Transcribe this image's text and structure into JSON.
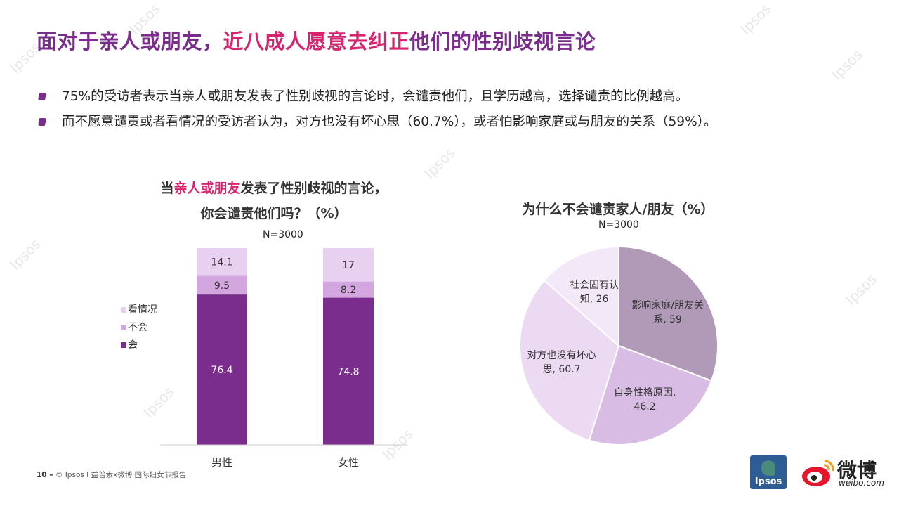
{
  "title": {
    "part1": "面对于亲人或朋友，",
    "part2": "近八成人愿意去纠正",
    "part3": "他们的性别歧视言论"
  },
  "bullets": [
    "75%的受访者表示当亲人或朋友发表了性别歧视的言论时，会谴责他们，且学历越高，选择谴责的比例越高。",
    "而不愿意谴责或者看情况的受访者认为，对方也没有坏心思（60.7%），或者怕影响家庭或与朋友的关系（59%）。"
  ],
  "bar_chart_title": {
    "line1_pre": "当",
    "line1_hl": "亲人或朋友",
    "line1_post": "发表了性别歧视的言论，",
    "line2": "你会谴责他们吗？（%）",
    "n": "N=3000"
  },
  "pie_chart_title": {
    "line1": "为什么不会谴责家人/朋友（%）",
    "n": "N=3000"
  },
  "chart_data": [
    {
      "type": "bar",
      "stacked": true,
      "categories": [
        "男性",
        "女性"
      ],
      "series": [
        {
          "name": "会",
          "values": [
            76.4,
            74.8
          ],
          "color": "#7b2d8e"
        },
        {
          "name": "不会",
          "values": [
            9.5,
            8.2
          ],
          "color": "#d4a6e0"
        },
        {
          "name": "看情况",
          "values": [
            14.1,
            17
          ],
          "color": "#e8d1f0"
        }
      ],
      "legend_order": [
        "看情况",
        "不会",
        "会"
      ],
      "legend_position": "left",
      "ylim": [
        0,
        100
      ]
    },
    {
      "type": "pie",
      "labels": [
        "影响家庭/朋友关系",
        "自身性格原因",
        "对方也没有坏心思",
        "社会固有认知"
      ],
      "label_lines": [
        [
          "影响家庭/朋友关",
          "系, 59"
        ],
        [
          "自身性格原因,",
          "46.2"
        ],
        [
          "对方也没有坏心",
          "思, 60.7"
        ],
        [
          "社会固有认",
          "知, 26"
        ]
      ],
      "values": [
        59,
        46.2,
        60.7,
        26
      ],
      "colors": [
        "#b09ab8",
        "#d8bce4",
        "#ecdaf2",
        "#f3e8f7"
      ]
    }
  ],
  "footer": {
    "page": "10 –",
    "text": "© Ipsos I 益普索x微博 国际妇女节报告"
  },
  "logos": {
    "ipsos": "Ipsos",
    "weibo_name": "微博",
    "weibo_url": "weibo.com"
  },
  "watermark": "Ipsos"
}
